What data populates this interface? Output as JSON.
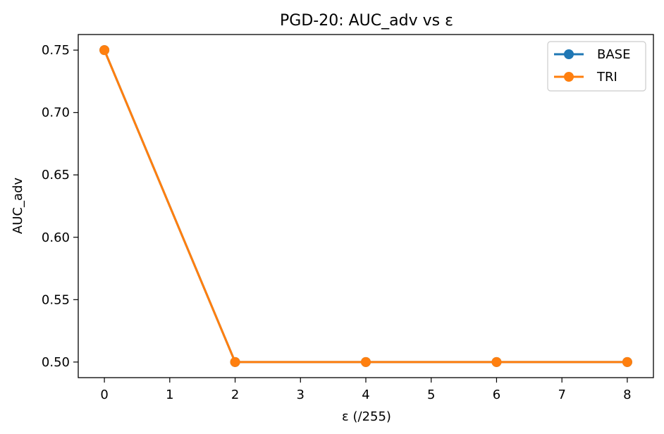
{
  "chart_data": {
    "type": "line",
    "title": "PGD-20: AUC_adv vs ε",
    "xlabel": "ε (/255)",
    "ylabel": "AUC_adv",
    "x": [
      0,
      2,
      4,
      6,
      8
    ],
    "series": [
      {
        "name": "BASE",
        "color": "#1f77b4",
        "values": [
          0.75,
          0.5,
          0.5,
          0.5,
          0.5
        ]
      },
      {
        "name": "TRI",
        "color": "#ff7f0e",
        "values": [
          0.75,
          0.5,
          0.5,
          0.5,
          0.5
        ]
      }
    ],
    "xlim": [
      -0.4,
      8.4
    ],
    "ylim": [
      0.4875,
      0.7625
    ],
    "xticks": [
      0,
      1,
      2,
      3,
      4,
      5,
      6,
      7,
      8
    ],
    "xtick_labels": [
      "0",
      "1",
      "2",
      "3",
      "4",
      "5",
      "6",
      "7",
      "8"
    ],
    "yticks": [
      0.5,
      0.55,
      0.6,
      0.65,
      0.7,
      0.75
    ],
    "ytick_labels": [
      "0.50",
      "0.55",
      "0.60",
      "0.65",
      "0.70",
      "0.75"
    ],
    "grid": false,
    "legend_position": "top-right",
    "marker": "circle"
  }
}
